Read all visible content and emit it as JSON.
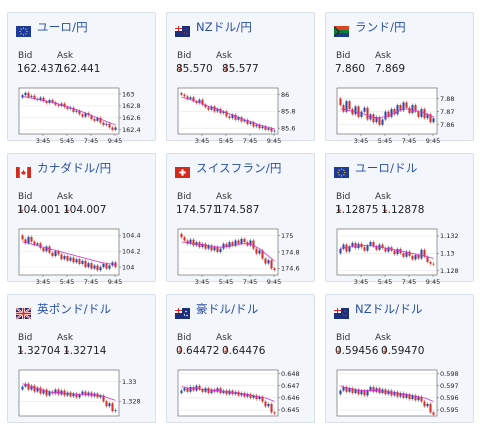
{
  "labels": {
    "bid": "Bid",
    "ask": "Ask"
  },
  "colors": {
    "up": "#2b4aa8",
    "down": "#d9302a",
    "ma": "#cc33cc",
    "link": "#2a4fa8"
  },
  "cards": [
    {
      "name": "eurjpy",
      "pair": "ユーロ/円",
      "flag": "eu",
      "bid": "162.437",
      "ask": "162.441",
      "bid_arrow": false,
      "ask_arrow": false,
      "x_ticks": [
        "3:45",
        "5:45",
        "7:45",
        "9:45"
      ],
      "y_ticks": [
        "163",
        "162.8",
        "162.6",
        "162.4"
      ],
      "y_ticks_values": [
        163,
        162.8,
        162.6,
        162.4
      ],
      "ylim": [
        162.33,
        163.1
      ],
      "close": [
        162.98,
        163.02,
        162.95,
        162.97,
        162.92,
        162.9,
        162.94,
        162.88,
        162.85,
        162.9,
        162.86,
        162.82,
        162.8,
        162.84,
        162.78,
        162.75,
        162.77,
        162.7,
        162.72,
        162.66,
        162.62,
        162.68,
        162.64,
        162.58,
        162.55,
        162.6,
        162.52,
        162.48,
        162.5,
        162.44,
        162.4,
        162.44
      ],
      "ma": [
        162.95,
        162.95,
        162.94,
        162.93,
        162.92,
        162.91,
        162.9,
        162.89,
        162.88,
        162.87,
        162.86,
        162.85,
        162.83,
        162.82,
        162.8,
        162.79,
        162.77,
        162.75,
        162.74,
        162.72,
        162.7,
        162.68,
        162.66,
        162.64,
        162.62,
        162.6,
        162.58,
        162.56,
        162.54,
        162.52,
        162.5,
        162.49
      ]
    },
    {
      "name": "nzdjpy",
      "pair": "NZドル/円",
      "flag": "nz",
      "bid": "85.570",
      "ask": "85.577",
      "bid_arrow": true,
      "ask_arrow": true,
      "x_ticks": [
        "3:45",
        "5:45",
        "7:45",
        "9:45"
      ],
      "y_ticks": [
        "86",
        "85.8",
        "85.6"
      ],
      "y_ticks_values": [
        86,
        85.8,
        85.6
      ],
      "ylim": [
        85.53,
        86.08
      ],
      "close": [
        86.0,
        85.98,
        85.95,
        85.97,
        85.92,
        85.9,
        85.94,
        85.88,
        85.85,
        85.82,
        85.86,
        85.8,
        85.83,
        85.78,
        85.8,
        85.74,
        85.72,
        85.76,
        85.7,
        85.73,
        85.68,
        85.7,
        85.65,
        85.67,
        85.62,
        85.64,
        85.6,
        85.62,
        85.58,
        85.6,
        85.56,
        85.57
      ],
      "ma": [
        85.97,
        85.96,
        85.95,
        85.94,
        85.93,
        85.92,
        85.91,
        85.89,
        85.88,
        85.86,
        85.85,
        85.84,
        85.83,
        85.81,
        85.8,
        85.78,
        85.77,
        85.76,
        85.74,
        85.73,
        85.72,
        85.7,
        85.69,
        85.68,
        85.67,
        85.65,
        85.64,
        85.63,
        85.62,
        85.61,
        85.6,
        85.59
      ]
    },
    {
      "name": "zarjpy",
      "pair": "ランド/円",
      "flag": "za",
      "bid": "7.860",
      "ask": "7.869",
      "bid_arrow": false,
      "ask_arrow": false,
      "x_ticks": [
        "3:45",
        "5:45",
        "7:45",
        "9:45"
      ],
      "y_ticks": [
        "7.88",
        "7.87",
        "7.86"
      ],
      "y_ticks_values": [
        7.88,
        7.87,
        7.86
      ],
      "ylim": [
        7.853,
        7.888
      ],
      "close": [
        7.875,
        7.87,
        7.878,
        7.872,
        7.868,
        7.874,
        7.866,
        7.87,
        7.873,
        7.864,
        7.868,
        7.862,
        7.866,
        7.86,
        7.864,
        7.87,
        7.866,
        7.872,
        7.868,
        7.875,
        7.871,
        7.877,
        7.873,
        7.869,
        7.875,
        7.87,
        7.866,
        7.872,
        7.865,
        7.868,
        7.862,
        7.865
      ],
      "ma": [
        7.872,
        7.872,
        7.871,
        7.871,
        7.87,
        7.87,
        7.869,
        7.869,
        7.868,
        7.867,
        7.866,
        7.866,
        7.865,
        7.865,
        7.866,
        7.866,
        7.867,
        7.868,
        7.869,
        7.87,
        7.871,
        7.872,
        7.872,
        7.872,
        7.871,
        7.871,
        7.87,
        7.87,
        7.869,
        7.868,
        7.867,
        7.866
      ]
    },
    {
      "name": "cadjpy",
      "pair": "カナダドル/円",
      "flag": "ca",
      "bid": "104.001",
      "ask": "104.007",
      "bid_arrow": true,
      "ask_arrow": true,
      "x_ticks": [
        "3:45",
        "5:45",
        "7:45",
        "9:45"
      ],
      "y_ticks": [
        "104.4",
        "104.2",
        "104"
      ],
      "y_ticks_values": [
        104.4,
        104.2,
        104
      ],
      "ylim": [
        103.9,
        104.48
      ],
      "close": [
        104.35,
        104.3,
        104.38,
        104.32,
        104.28,
        104.3,
        104.24,
        104.2,
        104.26,
        104.18,
        104.14,
        104.2,
        104.16,
        104.1,
        104.14,
        104.08,
        104.12,
        104.06,
        104.1,
        104.04,
        104.08,
        104.0,
        104.05,
        103.98,
        104.02,
        103.96,
        104.0,
        104.04,
        103.98,
        104.02,
        104.06,
        104.0
      ],
      "ma": [
        104.32,
        104.31,
        104.3,
        104.29,
        104.28,
        104.27,
        104.26,
        104.25,
        104.24,
        104.23,
        104.22,
        104.21,
        104.2,
        104.19,
        104.18,
        104.17,
        104.16,
        104.15,
        104.14,
        104.13,
        104.12,
        104.11,
        104.1,
        104.09,
        104.08,
        104.07,
        104.06,
        104.05,
        104.05,
        104.04,
        104.04,
        104.03
      ]
    },
    {
      "name": "chfjpy",
      "pair": "スイスフラン/円",
      "flag": "ch",
      "bid": "174.571",
      "ask": "174.587",
      "bid_arrow": false,
      "ask_arrow": false,
      "x_ticks": [
        "3:45",
        "5:45",
        "7:45",
        "9:45"
      ],
      "y_ticks": [
        "175",
        "174.8",
        "174.6"
      ],
      "y_ticks_values": [
        175,
        174.8,
        174.6
      ],
      "ylim": [
        174.52,
        175.08
      ],
      "close": [
        174.98,
        174.94,
        174.9,
        174.95,
        174.88,
        174.92,
        174.86,
        174.9,
        174.84,
        174.88,
        174.82,
        174.86,
        174.8,
        174.84,
        174.9,
        174.86,
        174.92,
        174.88,
        174.94,
        174.9,
        174.96,
        174.92,
        174.88,
        174.94,
        174.84,
        174.78,
        174.82,
        174.72,
        174.66,
        174.7,
        174.6,
        174.58
      ],
      "ma": [
        174.92,
        174.92,
        174.91,
        174.91,
        174.9,
        174.9,
        174.89,
        174.89,
        174.88,
        174.88,
        174.87,
        174.87,
        174.86,
        174.86,
        174.86,
        174.87,
        174.87,
        174.88,
        174.88,
        174.89,
        174.9,
        174.9,
        174.9,
        174.89,
        174.88,
        174.86,
        174.84,
        174.81,
        174.78,
        174.75,
        174.72,
        174.69
      ]
    },
    {
      "name": "eurusd",
      "pair": "ユーロ/ドル",
      "flag": "eu",
      "bid": "1.12875",
      "ask": "1.12878",
      "bid_arrow": true,
      "ask_arrow": true,
      "x_ticks": [
        "3:45",
        "5:45",
        "7:45",
        "9:45"
      ],
      "y_ticks": [
        "1.132",
        "1.13",
        "1.128"
      ],
      "y_ticks_values": [
        1.132,
        1.13,
        1.128
      ],
      "ylim": [
        1.1275,
        1.1328
      ],
      "close": [
        1.1305,
        1.131,
        1.1302,
        1.1308,
        1.1312,
        1.1306,
        1.1311,
        1.1307,
        1.1303,
        1.1309,
        1.1313,
        1.1308,
        1.1304,
        1.131,
        1.1306,
        1.1302,
        1.1307,
        1.1303,
        1.1299,
        1.1305,
        1.13,
        1.1296,
        1.1302,
        1.1297,
        1.1293,
        1.1298,
        1.1294,
        1.1304,
        1.1296,
        1.129,
        1.1288,
        1.1287
      ],
      "ma": [
        1.1306,
        1.1306,
        1.1307,
        1.1307,
        1.1308,
        1.1308,
        1.1309,
        1.1309,
        1.1309,
        1.1309,
        1.1309,
        1.1308,
        1.1308,
        1.1307,
        1.1307,
        1.1306,
        1.1305,
        1.1305,
        1.1304,
        1.1303,
        1.1303,
        1.1302,
        1.1301,
        1.13,
        1.13,
        1.1299,
        1.1298,
        1.1298,
        1.1297,
        1.1296,
        1.1295,
        1.1294
      ]
    },
    {
      "name": "gbpusd",
      "pair": "英ポンド/ドル",
      "flag": "gb",
      "bid": "1.32704",
      "ask": "1.32714",
      "bid_arrow": true,
      "ask_arrow": true,
      "x_ticks": [],
      "y_ticks": [
        "1.33",
        "1.328"
      ],
      "y_ticks_values": [
        1.33,
        1.328
      ],
      "ylim": [
        1.3265,
        1.3312
      ],
      "close": [
        1.3295,
        1.3298,
        1.3292,
        1.3296,
        1.329,
        1.3294,
        1.3288,
        1.3292,
        1.3286,
        1.329,
        1.3288,
        1.3292,
        1.3287,
        1.3291,
        1.3286,
        1.3289,
        1.3285,
        1.3288,
        1.3284,
        1.3287,
        1.329,
        1.3286,
        1.3289,
        1.3285,
        1.3288,
        1.3284,
        1.3286,
        1.328,
        1.3275,
        1.3278,
        1.327,
        1.3271
      ],
      "ma": [
        1.3298,
        1.3297,
        1.3296,
        1.3295,
        1.3294,
        1.3293,
        1.3292,
        1.3291,
        1.329,
        1.329,
        1.3289,
        1.3289,
        1.3289,
        1.3289,
        1.3288,
        1.3288,
        1.3288,
        1.3288,
        1.3287,
        1.3287,
        1.3287,
        1.3287,
        1.3287,
        1.3287,
        1.3287,
        1.3286,
        1.3286,
        1.3285,
        1.3284,
        1.3283,
        1.3282,
        1.3281
      ]
    },
    {
      "name": "audusd",
      "pair": "豪ドル/ドル",
      "flag": "au",
      "bid": "0.64472",
      "ask": "0.64476",
      "bid_arrow": true,
      "ask_arrow": true,
      "x_ticks": [],
      "y_ticks": [
        "0.648",
        "0.647",
        "0.646",
        "0.645"
      ],
      "y_ticks_values": [
        0.648,
        0.647,
        0.646,
        0.645
      ],
      "ylim": [
        0.6445,
        0.6483
      ],
      "close": [
        0.6466,
        0.6468,
        0.6465,
        0.6469,
        0.6466,
        0.647,
        0.6467,
        0.6465,
        0.6468,
        0.6464,
        0.6467,
        0.6465,
        0.6468,
        0.6464,
        0.6466,
        0.6463,
        0.6466,
        0.6463,
        0.6465,
        0.6462,
        0.6464,
        0.6461,
        0.6463,
        0.646,
        0.6462,
        0.6459,
        0.6461,
        0.6457,
        0.6453,
        0.6455,
        0.6448,
        0.6447
      ],
      "ma": [
        0.6469,
        0.6469,
        0.6468,
        0.6468,
        0.6468,
        0.6468,
        0.6467,
        0.6467,
        0.6467,
        0.6467,
        0.6466,
        0.6466,
        0.6466,
        0.6466,
        0.6465,
        0.6465,
        0.6465,
        0.6464,
        0.6464,
        0.6464,
        0.6463,
        0.6463,
        0.6463,
        0.6462,
        0.6462,
        0.6461,
        0.6461,
        0.646,
        0.646,
        0.6459,
        0.6458,
        0.6457
      ]
    },
    {
      "name": "nzdusd",
      "pair": "NZドル/ドル",
      "flag": "nz",
      "bid": "0.59456",
      "ask": "0.59470",
      "bid_arrow": true,
      "ask_arrow": true,
      "x_ticks": [],
      "y_ticks": [
        "0.598",
        "0.597",
        "0.596",
        "0.595"
      ],
      "y_ticks_values": [
        0.598,
        0.597,
        0.596,
        0.595
      ],
      "ylim": [
        0.5945,
        0.5983
      ],
      "close": [
        0.5966,
        0.5969,
        0.5965,
        0.5968,
        0.5964,
        0.5967,
        0.5963,
        0.5966,
        0.5962,
        0.5966,
        0.5969,
        0.5965,
        0.5968,
        0.5964,
        0.5967,
        0.5963,
        0.5966,
        0.5962,
        0.5965,
        0.5961,
        0.5964,
        0.596,
        0.5963,
        0.5959,
        0.5962,
        0.5958,
        0.5961,
        0.5957,
        0.5953,
        0.5955,
        0.5948,
        0.5946
      ],
      "ma": [
        0.597,
        0.5969,
        0.5968,
        0.5968,
        0.5967,
        0.5967,
        0.5966,
        0.5966,
        0.5966,
        0.5966,
        0.5966,
        0.5966,
        0.5966,
        0.5966,
        0.5965,
        0.5965,
        0.5965,
        0.5964,
        0.5964,
        0.5964,
        0.5963,
        0.5963,
        0.5963,
        0.5962,
        0.5962,
        0.5961,
        0.5961,
        0.596,
        0.596,
        0.5959,
        0.5958,
        0.5957
      ]
    }
  ]
}
